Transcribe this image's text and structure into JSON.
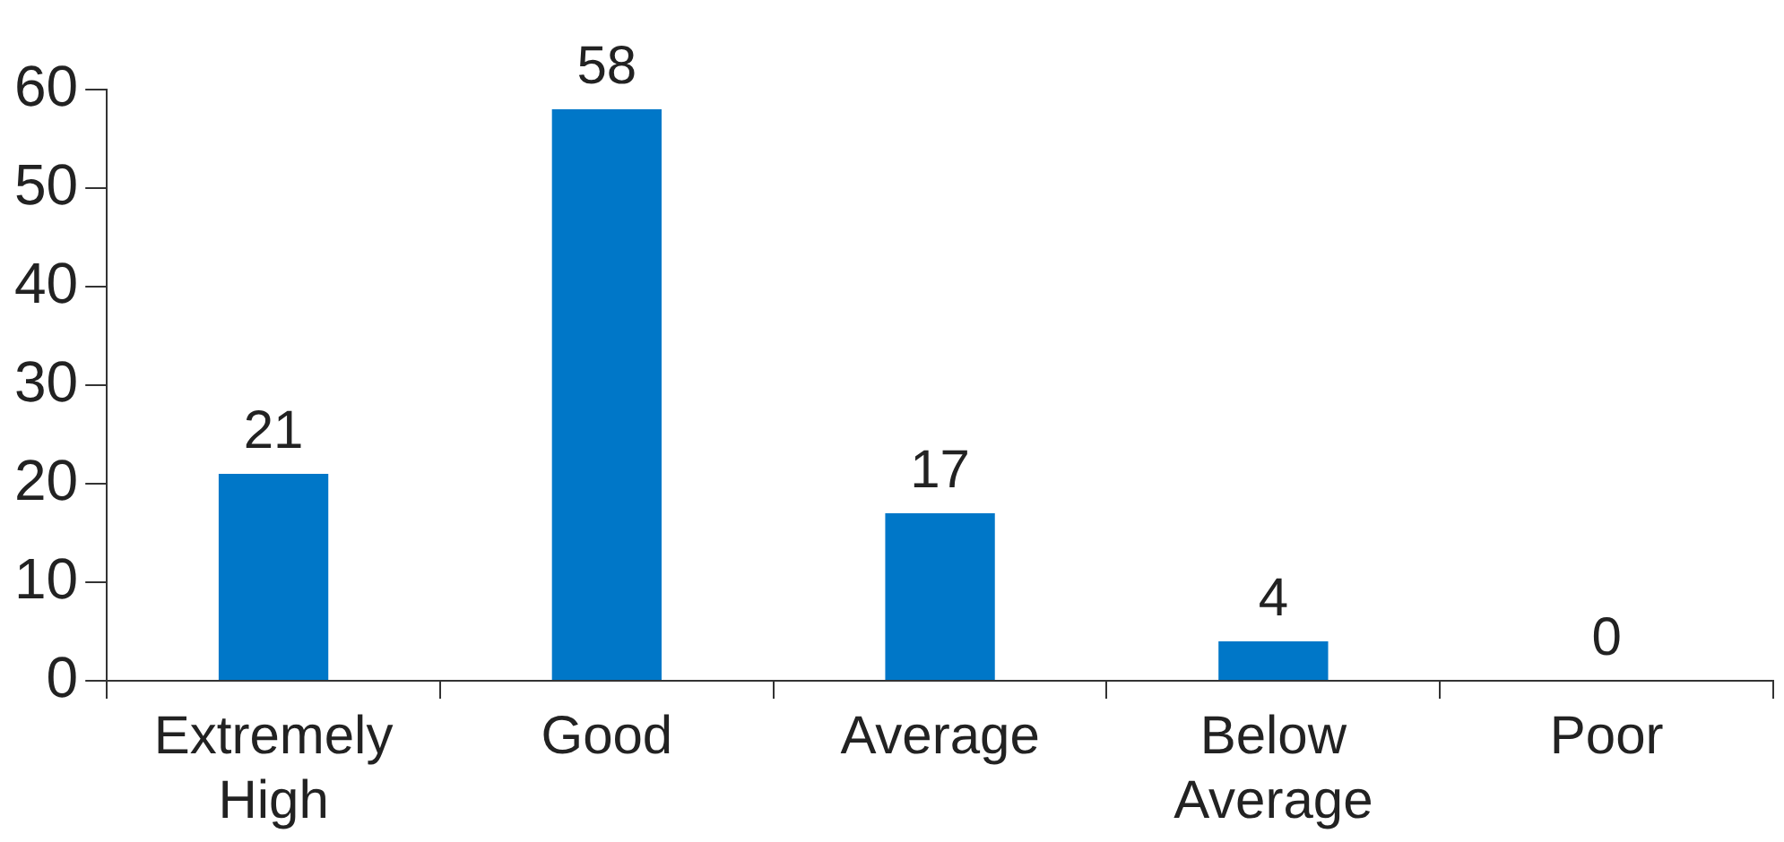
{
  "chart_data": {
    "type": "bar",
    "categories": [
      "Extremely High",
      "Good",
      "Average",
      "Below Average",
      "Poor"
    ],
    "values": [
      21,
      58,
      17,
      4,
      0
    ],
    "color": "#0077c8",
    "ylim": [
      0,
      60
    ],
    "yticks": [
      0,
      10,
      20,
      30,
      40,
      50,
      60
    ],
    "grid": false,
    "data_labels": true,
    "legend": false
  }
}
